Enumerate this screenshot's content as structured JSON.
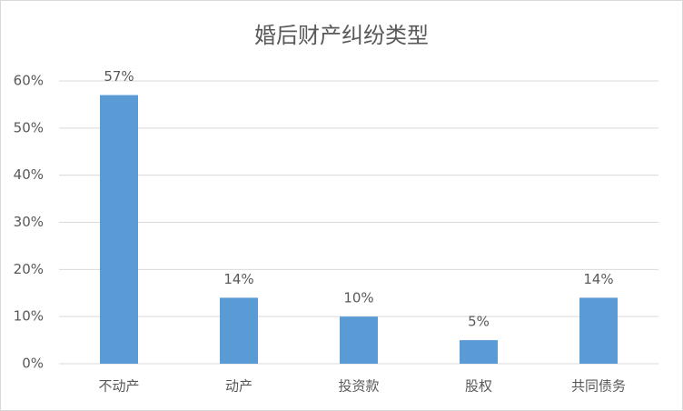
{
  "chart_data": {
    "type": "bar",
    "title": "婚后财产纠纷类型",
    "categories": [
      "不动产",
      "动产",
      "投资款",
      "股权",
      "共同债务"
    ],
    "values": [
      57,
      14,
      10,
      5,
      14
    ],
    "value_labels": [
      "57%",
      "14%",
      "10%",
      "5%",
      "14%"
    ],
    "color": "#5b9bd5",
    "ylim": [
      0,
      60
    ],
    "yticks": [
      {
        "value": 0,
        "label": "0%"
      },
      {
        "value": 10,
        "label": "10%"
      },
      {
        "value": 20,
        "label": "20%"
      },
      {
        "value": 30,
        "label": "30%"
      },
      {
        "value": 40,
        "label": "40%"
      },
      {
        "value": 50,
        "label": "50%"
      },
      {
        "value": 60,
        "label": "60%"
      }
    ],
    "grid": true
  }
}
